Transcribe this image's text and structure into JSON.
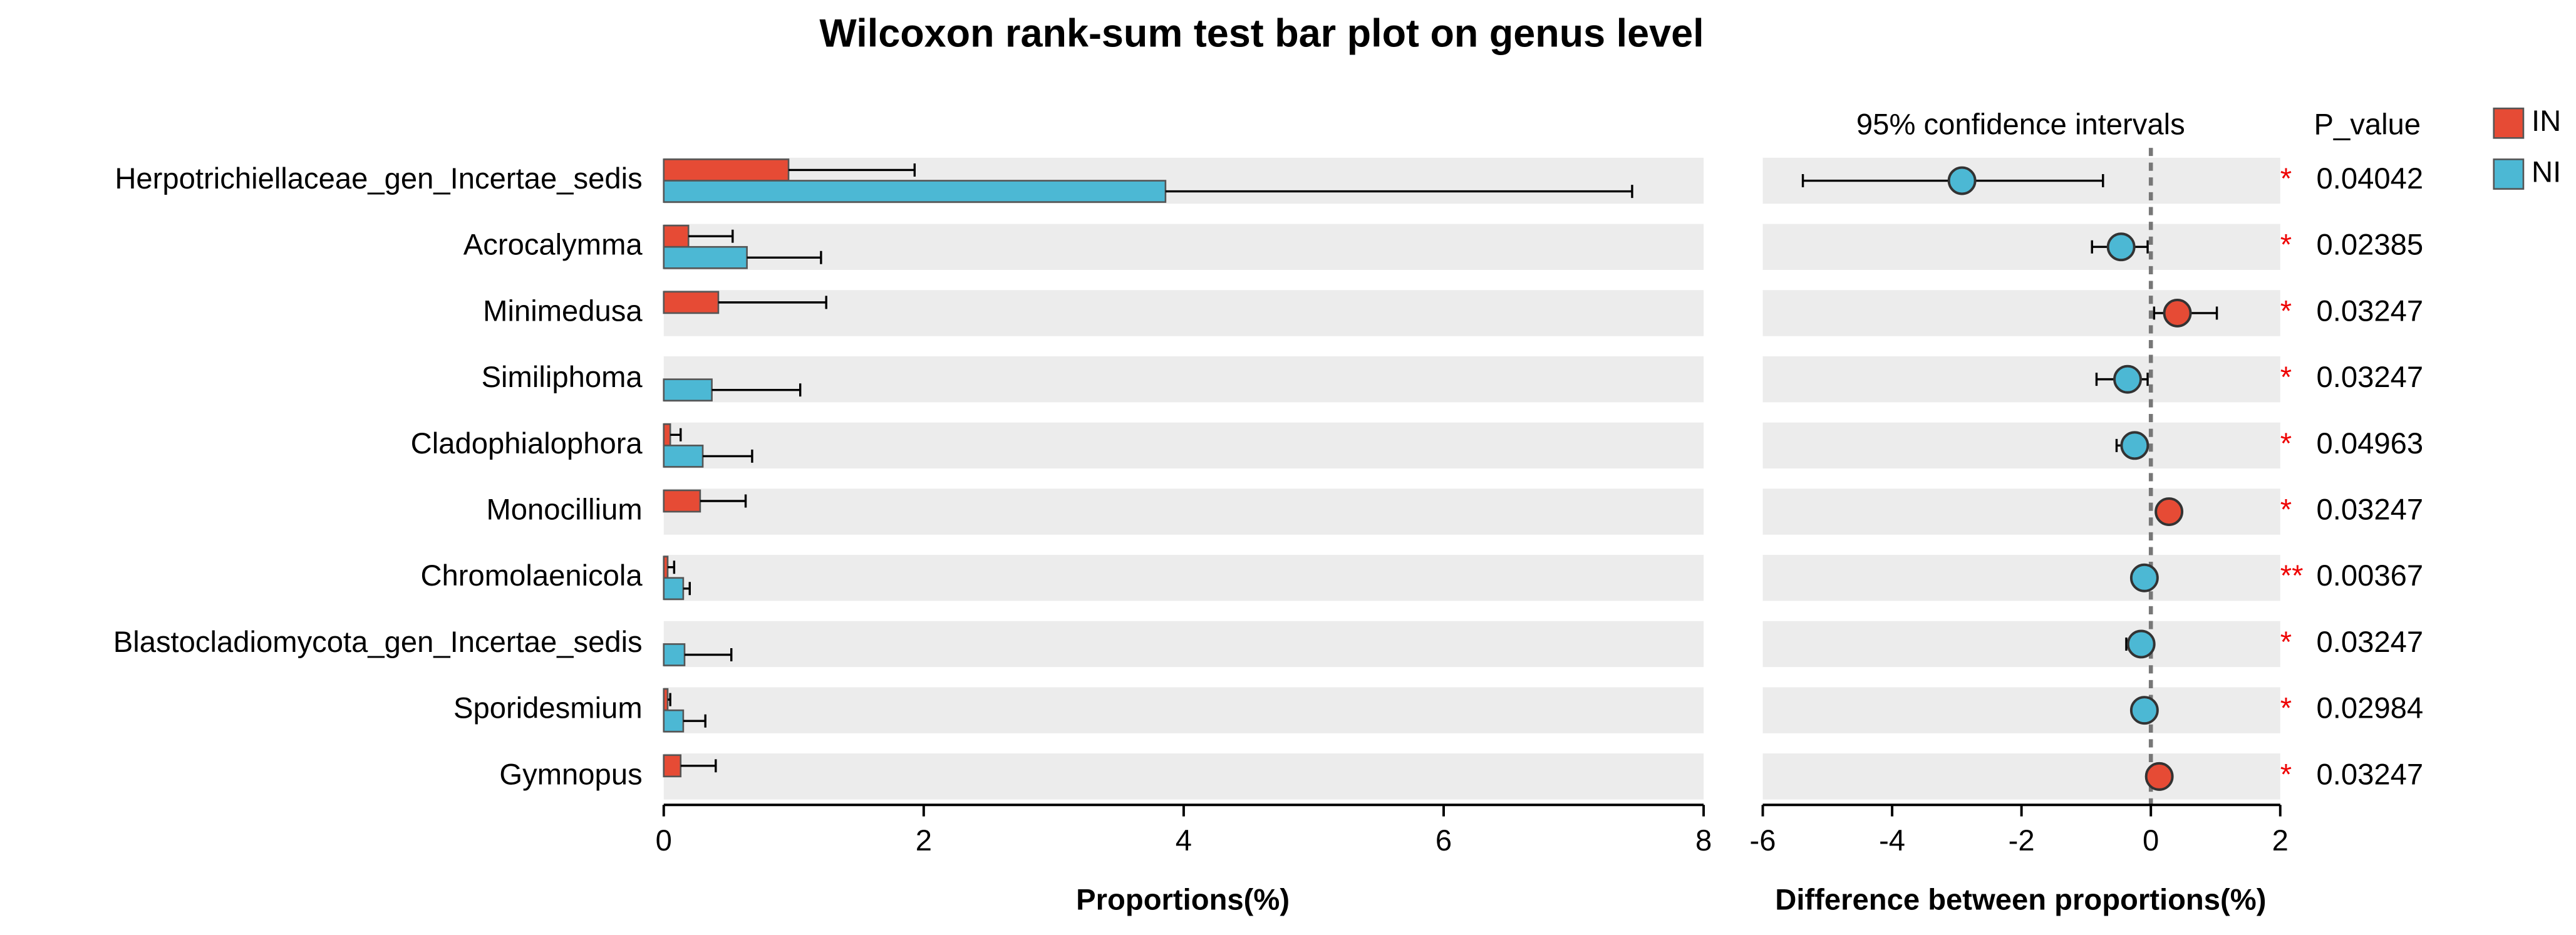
{
  "chart_data": [
    {
      "type": "hbar_error",
      "title": "Wilcoxon rank-sum test bar plot on genus level",
      "xlabel": "Proportions(%)",
      "categories": [
        "Herpotrichiellaceae_gen_Incertae_sedis",
        "Acrocalymma",
        "Minimedusa",
        "Similiphoma",
        "Cladophialophora",
        "Monocillium",
        "Chromolaenicola",
        "Blastocladiomycota_gen_Incertae_sedis",
        "Sporidesmium",
        "Gymnopus"
      ],
      "series": [
        {
          "name": "IN",
          "color": "#e64b35",
          "values": [
            0.96,
            0.19,
            0.42,
            0,
            0.05,
            0.28,
            0.03,
            0,
            0.03,
            0.13
          ],
          "errors": [
            0.97,
            0.34,
            0.83,
            0,
            0.08,
            0.35,
            0.05,
            0,
            0.02,
            0.27
          ]
        },
        {
          "name": "NI",
          "color": "#4cb8d4",
          "values": [
            3.86,
            0.64,
            0,
            0.37,
            0.3,
            0,
            0.15,
            0.16,
            0.15,
            0
          ],
          "errors": [
            3.59,
            0.57,
            0,
            0.68,
            0.38,
            0,
            0.05,
            0.36,
            0.17,
            0
          ]
        }
      ],
      "xlim": [
        0,
        8
      ],
      "xticks": [
        0,
        2,
        4,
        6,
        8
      ],
      "legend": "top-right"
    },
    {
      "type": "dot_ci",
      "subtitle": "95% confidence intervals",
      "p_value_header": "P_value",
      "xlabel": "Difference between proportions(%)",
      "values": [
        -2.92,
        -0.46,
        0.41,
        -0.36,
        -0.25,
        0.28,
        -0.1,
        -0.15,
        -0.1,
        0.13
      ],
      "ci_low": [
        -5.38,
        -0.91,
        0.05,
        -0.84,
        -0.53,
        0.13,
        -0.18,
        -0.38,
        -0.2,
        0.03
      ],
      "ci_high": [
        -0.74,
        -0.05,
        1.02,
        -0.05,
        -0.08,
        0.43,
        -0.03,
        0,
        -0.05,
        0.23
      ],
      "p_values": [
        0.04042,
        0.02385,
        0.03247,
        0.03247,
        0.04963,
        0.03247,
        0.00367,
        0.03247,
        0.02984,
        0.03247
      ],
      "significance": [
        "*",
        "*",
        "*",
        "*",
        "*",
        "*",
        "**",
        "*",
        "*",
        "*"
      ],
      "color_positive": "#e64b35",
      "color_negative": "#4cb8d4",
      "xlim": [
        -6,
        2
      ],
      "xticks": [
        -6,
        -4,
        -2,
        0,
        2
      ]
    }
  ]
}
